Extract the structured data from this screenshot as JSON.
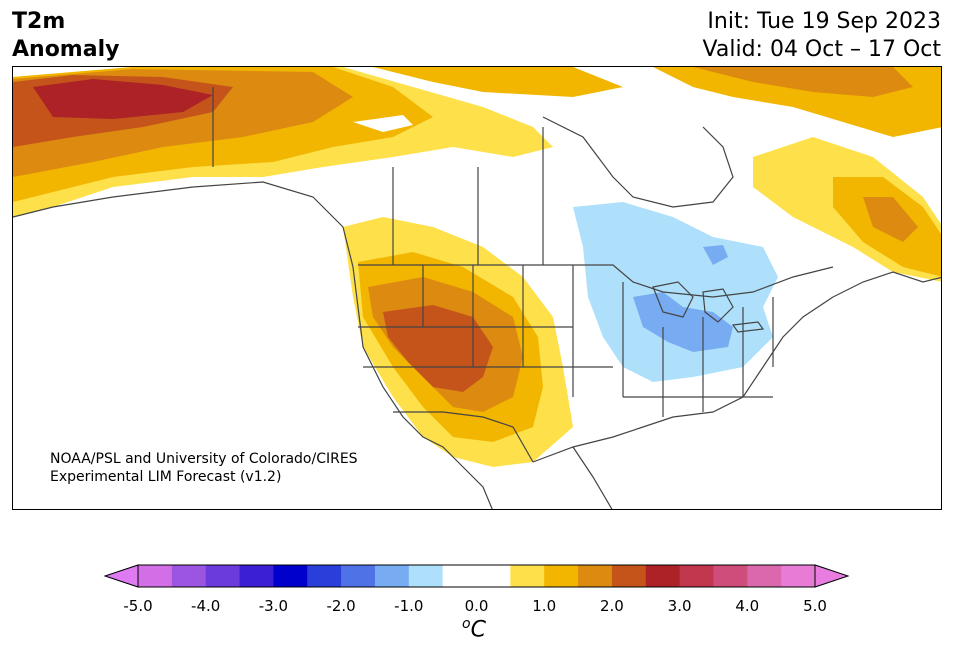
{
  "title": {
    "line1": "T2m",
    "line2": "Anomaly"
  },
  "dates": {
    "init": "Init: Tue 19 Sep 2023",
    "valid": "Valid: 04 Oct – 17 Oct"
  },
  "credit": {
    "line1": "NOAA/PSL and University of Colorado/CIRES",
    "line2": "Experimental LIM Forecast (v1.2)"
  },
  "colorbar": {
    "unit_base": "C",
    "unit_sup": "o",
    "ticks": [
      "-5.0",
      "-4.0",
      "-3.0",
      "-2.0",
      "-1.0",
      "0.0",
      "1.0",
      "2.0",
      "3.0",
      "4.0",
      "5.0"
    ],
    "colors": [
      "#d26fe6",
      "#9c55e0",
      "#6b3bdb",
      "#3b1fd5",
      "#0000cc",
      "#2a3fd9",
      "#4f73e6",
      "#77acf2",
      "#aee0fb",
      "#ffffff",
      "#ffffff",
      "#fde04a",
      "#f2b600",
      "#dd8a11",
      "#c4541a",
      "#ad2226",
      "#c1374d",
      "#cf4d7a",
      "#db67ac",
      "#e77bd6"
    ],
    "under_color": "#de7af2",
    "over_color": "#e97ce0"
  },
  "map_colors": {
    "land": "#ffffff",
    "warm1": "#fde04a",
    "warm2": "#f2b600",
    "warm3": "#dd8a11",
    "warm4": "#c4541a",
    "warm5": "#ad2226",
    "cool1": "#aee0fb",
    "cool2": "#77acf2",
    "line": "#444444"
  }
}
